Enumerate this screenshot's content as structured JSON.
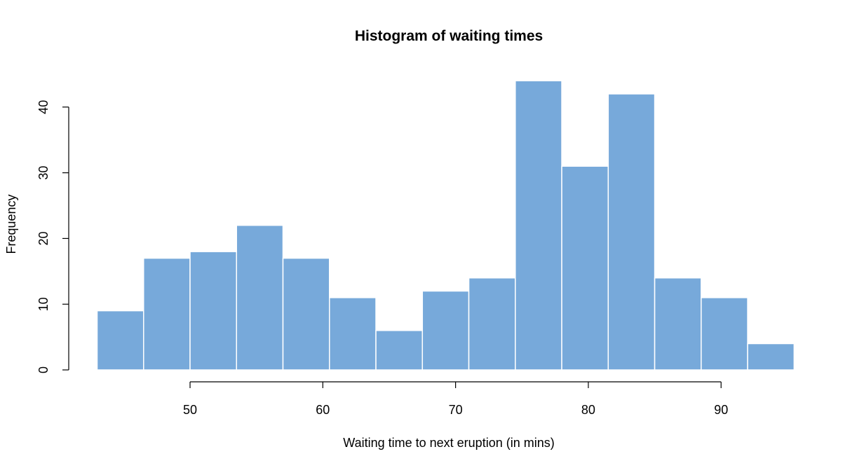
{
  "chart_data": {
    "type": "histogram",
    "title": "Histogram of waiting times",
    "xlabel": "Waiting time to next eruption (in mins)",
    "ylabel": "Frequency",
    "bins": [
      {
        "start": 43.0,
        "end": 46.5,
        "count": 9
      },
      {
        "start": 46.5,
        "end": 50.0,
        "count": 17
      },
      {
        "start": 50.0,
        "end": 53.5,
        "count": 18
      },
      {
        "start": 53.5,
        "end": 57.0,
        "count": 22
      },
      {
        "start": 57.0,
        "end": 60.5,
        "count": 17
      },
      {
        "start": 60.5,
        "end": 64.0,
        "count": 11
      },
      {
        "start": 64.0,
        "end": 67.5,
        "count": 6
      },
      {
        "start": 67.5,
        "end": 71.0,
        "count": 12
      },
      {
        "start": 71.0,
        "end": 74.5,
        "count": 14
      },
      {
        "start": 74.5,
        "end": 78.0,
        "count": 44
      },
      {
        "start": 78.0,
        "end": 81.5,
        "count": 31
      },
      {
        "start": 81.5,
        "end": 85.0,
        "count": 42
      },
      {
        "start": 85.0,
        "end": 88.5,
        "count": 14
      },
      {
        "start": 88.5,
        "end": 92.0,
        "count": 11
      },
      {
        "start": 92.0,
        "end": 95.5,
        "count": 4
      }
    ],
    "x_ticks": [
      50,
      60,
      70,
      80,
      90
    ],
    "x_tick_labels": [
      "50",
      "60",
      "70",
      "80",
      "90"
    ],
    "y_ticks": [
      0,
      10,
      20,
      30,
      40
    ],
    "y_tick_labels": [
      "0",
      "10",
      "20",
      "30",
      "40"
    ],
    "xlim": [
      43,
      95.5
    ],
    "ylim": [
      0,
      44
    ],
    "bar_color": "#77a9da",
    "bar_border_color": "#ffffff",
    "grid": false
  }
}
